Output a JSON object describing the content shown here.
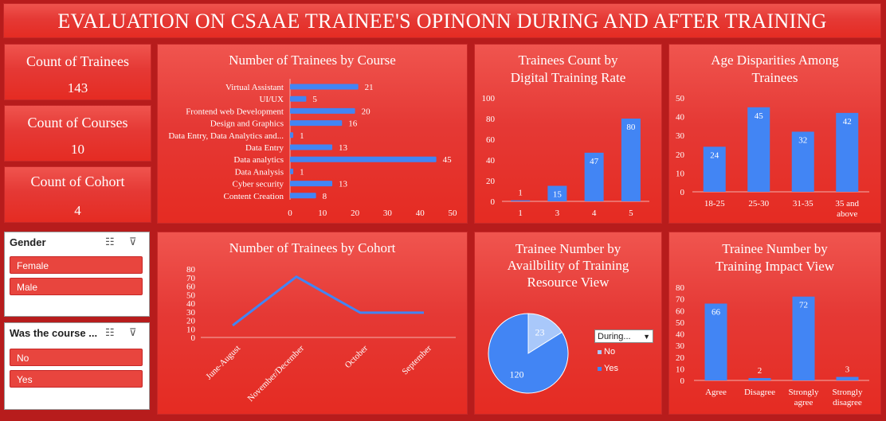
{
  "title": "EVALUATION ON CSAAE TRAINEE'S OPINONN DURING AND AFTER TRAINING",
  "kpis": [
    {
      "label": "Count of Trainees",
      "value": "143"
    },
    {
      "label": "Count of Courses",
      "value": "10"
    },
    {
      "label": "Count of Cohort",
      "value": "4"
    }
  ],
  "slicers": {
    "gender": {
      "header": "Gender",
      "items": [
        "Female",
        "Male"
      ]
    },
    "course": {
      "header": "Was the course ...",
      "items": [
        "No",
        "Yes"
      ]
    }
  },
  "chart_data": [
    {
      "id": "course",
      "type": "bar",
      "orientation": "horizontal",
      "title": "Number of Trainees by Course",
      "categories": [
        "Virtual Assistant",
        "UI/UX",
        "Frontend web Development",
        "Design and Graphics",
        "Data Entry, Data Analytics and...",
        "Data Entry",
        "Data analytics",
        "Data Analysis",
        "Cyber security",
        "Content Creation"
      ],
      "values": [
        21,
        5,
        20,
        16,
        1,
        13,
        45,
        1,
        13,
        8
      ],
      "xlim": [
        0,
        50
      ],
      "ticks": [
        0,
        10,
        20,
        30,
        40,
        50
      ],
      "color": "#4285f4"
    },
    {
      "id": "digital",
      "type": "bar",
      "title": "Trainees Count by Digital Training Rate",
      "title_lines": [
        "Trainees Count by",
        "Digital Training Rate"
      ],
      "categories": [
        "1",
        "3",
        "4",
        "5"
      ],
      "values": [
        1,
        15,
        47,
        80
      ],
      "ylim": [
        0,
        100
      ],
      "ticks": [
        0,
        20,
        40,
        60,
        80,
        100
      ],
      "color": "#4285f4"
    },
    {
      "id": "age",
      "type": "bar",
      "title": "Age Disparities Among Trainees",
      "title_lines": [
        "Age Disparities Among",
        "Trainees"
      ],
      "categories": [
        "18-25",
        "25-30",
        "31-35",
        "35 and above"
      ],
      "category_lines": [
        [
          "18-25"
        ],
        [
          "25-30"
        ],
        [
          "31-35"
        ],
        [
          "35 and",
          "above"
        ]
      ],
      "values": [
        24,
        45,
        32,
        42
      ],
      "ylim": [
        0,
        50
      ],
      "ticks": [
        0,
        10,
        20,
        30,
        40,
        50
      ],
      "color": "#4285f4"
    },
    {
      "id": "cohort",
      "type": "line",
      "title": "Number of Trainees by Cohort",
      "categories": [
        "June-August",
        "November/December",
        "October",
        "September"
      ],
      "values": [
        14,
        71,
        29,
        29
      ],
      "ylim": [
        0,
        80
      ],
      "ticks": [
        0,
        10,
        20,
        30,
        40,
        50,
        60,
        70,
        80
      ],
      "color": "#4285f4"
    },
    {
      "id": "resource",
      "type": "pie",
      "title": "Trainee Number by Availbility of Training Resource View",
      "title_lines": [
        "Trainee Number by",
        "Availbility of Training",
        "Resource View"
      ],
      "slices": [
        {
          "name": "No",
          "value": 23,
          "color": "#a9c8fa"
        },
        {
          "name": "Yes",
          "value": 120,
          "color": "#4285f4"
        }
      ],
      "legend_filter": "During...",
      "legend": [
        "No",
        "Yes"
      ]
    },
    {
      "id": "impact",
      "type": "bar",
      "title": "Trainee Number by Training Impact View",
      "title_lines": [
        "Trainee Number by",
        "Training Impact View"
      ],
      "categories": [
        "Agree",
        "Disagree",
        "Strongly agree",
        "Strongly disagree"
      ],
      "category_lines": [
        [
          "Agree"
        ],
        [
          "Disagree"
        ],
        [
          "Strongly",
          "agree"
        ],
        [
          "Strongly",
          "disagree"
        ]
      ],
      "values": [
        66,
        2,
        72,
        3
      ],
      "ylim": [
        0,
        80
      ],
      "ticks": [
        0,
        10,
        20,
        30,
        40,
        50,
        60,
        70,
        80
      ],
      "color": "#4285f4"
    }
  ]
}
